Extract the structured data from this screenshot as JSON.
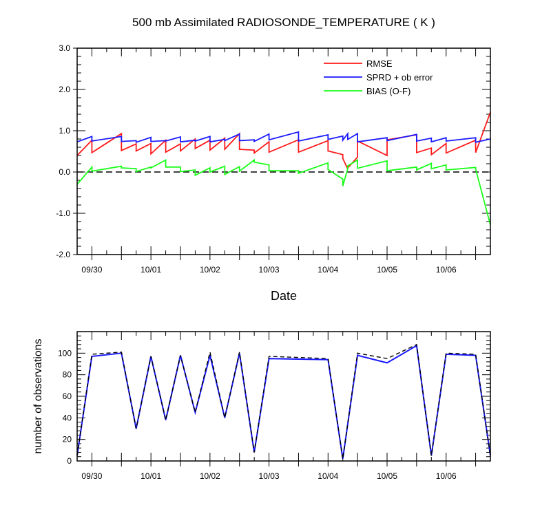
{
  "top_chart": {
    "title": "500 mb Assimilated RADIOSONDE_TEMPERATURE ( K )",
    "xlabel": "Date",
    "ylim": [
      -2.0,
      3.0
    ],
    "xlim": [
      0,
      84
    ],
    "yticks": [
      -2.0,
      -1.0,
      0.0,
      1.0,
      2.0,
      3.0
    ],
    "ytick_labels": [
      "-2.0",
      "-1.0",
      "0.0",
      "1.0",
      "2.0",
      "3.0"
    ],
    "date_labels": [
      "09/30",
      "10/01",
      "10/02",
      "10/03",
      "10/04",
      "10/05",
      "10/06"
    ],
    "zero_line": "dashed",
    "legend_position": "top-right",
    "legend": [
      "RMSE",
      "SPRD + ob error",
      "BIAS (O-F)"
    ],
    "colors": {
      "RMSE": "#ff1a1a",
      "SPRD": "#1a1aff",
      "BIAS": "#1aff1a"
    }
  },
  "bottom_chart": {
    "ylabel": "number of observations",
    "ylim": [
      0,
      120
    ],
    "xlim": [
      0,
      84
    ],
    "yticks": [
      0,
      20,
      40,
      60,
      80,
      100
    ],
    "ytick_labels": [
      "0",
      "20",
      "40",
      "60",
      "80",
      "100"
    ],
    "date_labels": [
      "09/30",
      "10/01",
      "10/02",
      "10/03",
      "10/04",
      "10/05",
      "10/06"
    ],
    "colors": {
      "used": "#1a1aff",
      "possible": "#000000"
    }
  },
  "chart_data": [
    {
      "type": "line",
      "title": "500 mb Assimilated RADIOSONDE_TEMPERATURE ( K )",
      "xlabel": "Date",
      "ylabel": "",
      "ylim": [
        -2.0,
        3.0
      ],
      "x_date_labels": [
        "09/30",
        "10/01",
        "10/02",
        "10/03",
        "10/04",
        "10/05",
        "10/06"
      ],
      "series": [
        {
          "name": "RMSE",
          "points": [
            [
              0,
              0.4
            ],
            [
              3,
              0.77
            ],
            [
              3,
              0.47
            ],
            [
              9,
              0.93
            ],
            [
              9,
              0.52
            ],
            [
              12,
              0.68
            ],
            [
              12,
              0.51
            ],
            [
              15,
              0.69
            ],
            [
              15,
              0.44
            ],
            [
              18,
              0.77
            ],
            [
              18,
              0.48
            ],
            [
              21,
              0.68
            ],
            [
              21,
              0.51
            ],
            [
              24,
              0.8
            ],
            [
              24,
              0.57
            ],
            [
              27,
              0.77
            ],
            [
              27,
              0.53
            ],
            [
              30,
              0.82
            ],
            [
              30,
              0.55
            ],
            [
              33,
              0.93
            ],
            [
              33,
              0.55
            ],
            [
              36,
              0.53
            ],
            [
              36,
              0.46
            ],
            [
              39,
              0.73
            ],
            [
              39,
              0.48
            ],
            [
              45,
              0.78
            ],
            [
              45,
              0.48
            ],
            [
              51,
              0.76
            ],
            [
              51,
              0.51
            ],
            [
              54,
              0.42
            ],
            [
              54,
              0.33
            ],
            [
              55,
              0.07
            ],
            [
              55,
              0.1
            ],
            [
              57,
              0.36
            ],
            [
              57,
              0.75
            ],
            [
              63,
              0.4
            ],
            [
              63,
              0.78
            ],
            [
              69,
              0.9
            ],
            [
              69,
              0.47
            ],
            [
              72,
              0.58
            ],
            [
              72,
              0.42
            ],
            [
              75,
              0.69
            ],
            [
              75,
              0.46
            ],
            [
              81,
              0.77
            ],
            [
              81,
              0.47
            ],
            [
              84,
              1.45
            ]
          ]
        },
        {
          "name": "SPRD + ob error",
          "points": [
            [
              0,
              0.73
            ],
            [
              3,
              0.86
            ],
            [
              3,
              0.75
            ],
            [
              9,
              0.86
            ],
            [
              9,
              0.74
            ],
            [
              12,
              0.76
            ],
            [
              12,
              0.72
            ],
            [
              15,
              0.84
            ],
            [
              15,
              0.74
            ],
            [
              18,
              0.76
            ],
            [
              18,
              0.75
            ],
            [
              21,
              0.85
            ],
            [
              21,
              0.73
            ],
            [
              24,
              0.77
            ],
            [
              24,
              0.75
            ],
            [
              27,
              0.86
            ],
            [
              27,
              0.73
            ],
            [
              30,
              0.79
            ],
            [
              30,
              0.76
            ],
            [
              33,
              0.92
            ],
            [
              33,
              0.76
            ],
            [
              36,
              0.78
            ],
            [
              36,
              0.74
            ],
            [
              39,
              0.92
            ],
            [
              39,
              0.78
            ],
            [
              45,
              0.97
            ],
            [
              45,
              0.75
            ],
            [
              51,
              0.9
            ],
            [
              51,
              0.79
            ],
            [
              54,
              0.87
            ],
            [
              54,
              0.77
            ],
            [
              55,
              0.93
            ],
            [
              55,
              0.79
            ],
            [
              57,
              0.93
            ],
            [
              57,
              0.73
            ],
            [
              63,
              0.83
            ],
            [
              63,
              0.76
            ],
            [
              69,
              0.91
            ],
            [
              69,
              0.75
            ],
            [
              72,
              0.82
            ],
            [
              72,
              0.73
            ],
            [
              75,
              0.83
            ],
            [
              75,
              0.75
            ],
            [
              81,
              0.83
            ],
            [
              81,
              0.72
            ],
            [
              84,
              0.8
            ]
          ]
        },
        {
          "name": "BIAS (O-F)",
          "points": [
            [
              0,
              -0.3
            ],
            [
              3,
              0.12
            ],
            [
              3,
              0.02
            ],
            [
              9,
              0.14
            ],
            [
              9,
              0.1
            ],
            [
              12,
              0.08
            ],
            [
              12,
              0.01
            ],
            [
              15,
              0.12
            ],
            [
              15,
              0.1
            ],
            [
              18,
              0.29
            ],
            [
              18,
              0.12
            ],
            [
              21,
              0.12
            ],
            [
              21,
              0.01
            ],
            [
              24,
              0.05
            ],
            [
              24,
              -0.08
            ],
            [
              27,
              0.1
            ],
            [
              27,
              0.0
            ],
            [
              30,
              0.14
            ],
            [
              30,
              -0.06
            ],
            [
              33,
              0.13
            ],
            [
              33,
              0.02
            ],
            [
              36,
              0.29
            ],
            [
              36,
              0.24
            ],
            [
              39,
              0.17
            ],
            [
              39,
              0.03
            ],
            [
              45,
              0.03
            ],
            [
              45,
              -0.03
            ],
            [
              51,
              0.22
            ],
            [
              51,
              0.06
            ],
            [
              54,
              -0.17
            ],
            [
              54,
              -0.34
            ],
            [
              55,
              0.08
            ],
            [
              55,
              0.15
            ],
            [
              57,
              0.29
            ],
            [
              57,
              0.09
            ],
            [
              63,
              0.27
            ],
            [
              63,
              0.03
            ],
            [
              69,
              0.12
            ],
            [
              69,
              0.05
            ],
            [
              72,
              0.21
            ],
            [
              72,
              0.08
            ],
            [
              75,
              0.17
            ],
            [
              75,
              0.05
            ],
            [
              81,
              0.11
            ],
            [
              81,
              0.07
            ],
            [
              84,
              -1.28
            ]
          ]
        }
      ]
    },
    {
      "type": "line",
      "title": "",
      "xlabel": "",
      "ylabel": "number of observations",
      "ylim": [
        0,
        120
      ],
      "x_date_labels": [
        "09/30",
        "10/01",
        "10/02",
        "10/03",
        "10/04",
        "10/05",
        "10/06"
      ],
      "series": [
        {
          "name": "",
          "style": "solid-blue",
          "points": [
            [
              0,
              5
            ],
            [
              3,
              97
            ],
            [
              9,
              100
            ],
            [
              12,
              30
            ],
            [
              15,
              97
            ],
            [
              18,
              38
            ],
            [
              21,
              98
            ],
            [
              24,
              45
            ],
            [
              27,
              98
            ],
            [
              30,
              40
            ],
            [
              33,
              100
            ],
            [
              36,
              8
            ],
            [
              39,
              95
            ],
            [
              51,
              94
            ],
            [
              54,
              2
            ],
            [
              57,
              98
            ],
            [
              63,
              91
            ],
            [
              69,
              107
            ],
            [
              72,
              5
            ],
            [
              75,
              99
            ],
            [
              81,
              98
            ],
            [
              84,
              5
            ]
          ]
        },
        {
          "name": "",
          "style": "dashed-black",
          "points": [
            [
              0,
              5
            ],
            [
              3,
              99
            ],
            [
              9,
              101
            ],
            [
              12,
              30
            ],
            [
              15,
              97
            ],
            [
              18,
              38
            ],
            [
              21,
              98
            ],
            [
              24,
              45
            ],
            [
              27,
              101
            ],
            [
              30,
              40
            ],
            [
              33,
              101
            ],
            [
              36,
              8
            ],
            [
              39,
              97
            ],
            [
              51,
              95
            ],
            [
              54,
              2
            ],
            [
              57,
              100
            ],
            [
              63,
              95
            ],
            [
              69,
              108
            ],
            [
              72,
              5
            ],
            [
              75,
              100
            ],
            [
              81,
              99
            ],
            [
              84,
              5
            ]
          ]
        }
      ]
    }
  ]
}
